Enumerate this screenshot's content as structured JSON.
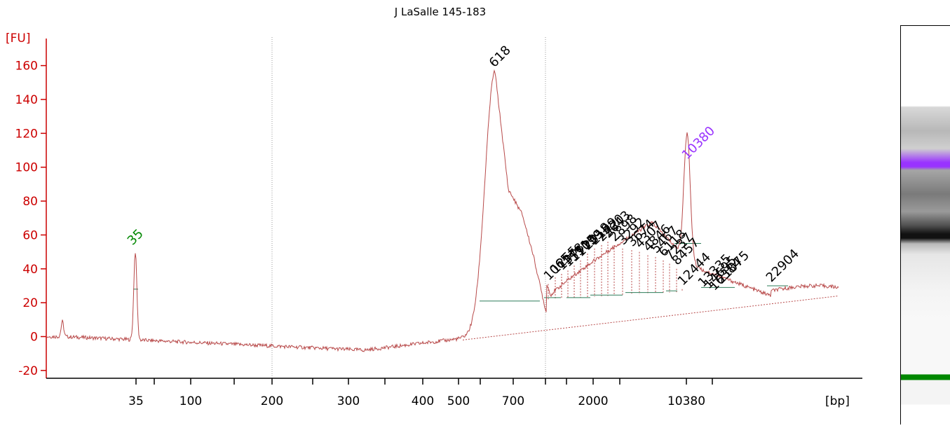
{
  "chart_data": {
    "type": "line",
    "title": "J LaSalle 145-183",
    "ylabel": "[FU]",
    "xlabel": "[bp]",
    "ylim": [
      -25,
      175
    ],
    "y_ticks": [
      -20,
      0,
      20,
      40,
      60,
      80,
      100,
      120,
      140,
      160
    ],
    "x_tick_labels": [
      "35",
      "100",
      "200",
      "300",
      "400",
      "500",
      "700",
      "2000",
      "10380"
    ],
    "colors": {
      "axis": "#cc0000",
      "trace": "#b84a4a",
      "lower_marker": "#008800",
      "upper_marker": "#9933ff",
      "peak_label": "#000000",
      "baseline": "#2e7d5a"
    },
    "marker_peaks": [
      {
        "label": "35",
        "value": 52,
        "role": "lower_marker"
      },
      {
        "label": "10380",
        "value": 101,
        "role": "upper_marker"
      }
    ],
    "peaks": [
      {
        "label": "618",
        "value": 157
      },
      {
        "label": "1065",
        "value": 32
      },
      {
        "label": "1255",
        "value": 36
      },
      {
        "label": "1378",
        "value": 38
      },
      {
        "label": "1551",
        "value": 40
      },
      {
        "label": "1705",
        "value": 43
      },
      {
        "label": "1799",
        "value": 46
      },
      {
        "label": "2018",
        "value": 50
      },
      {
        "label": "2199",
        "value": 53
      },
      {
        "label": "2420",
        "value": 55
      },
      {
        "label": "2643",
        "value": 57
      },
      {
        "label": "2898",
        "value": 55
      },
      {
        "label": "3292",
        "value": 53
      },
      {
        "label": "3674",
        "value": 52
      },
      {
        "label": "4307",
        "value": 51
      },
      {
        "label": "4846",
        "value": 49
      },
      {
        "label": "5467",
        "value": 48
      },
      {
        "label": "6118",
        "value": 46
      },
      {
        "label": "7237",
        "value": 44
      },
      {
        "label": "8457",
        "value": 41
      },
      {
        "label": "12444",
        "value": 29
      },
      {
        "label": "13335",
        "value": 28
      },
      {
        "label": "14695",
        "value": 27
      },
      {
        "label": "16384",
        "value": 26
      },
      {
        "label": "21075",
        "value": 30
      },
      {
        "label": "22904",
        "value": 31
      }
    ]
  }
}
